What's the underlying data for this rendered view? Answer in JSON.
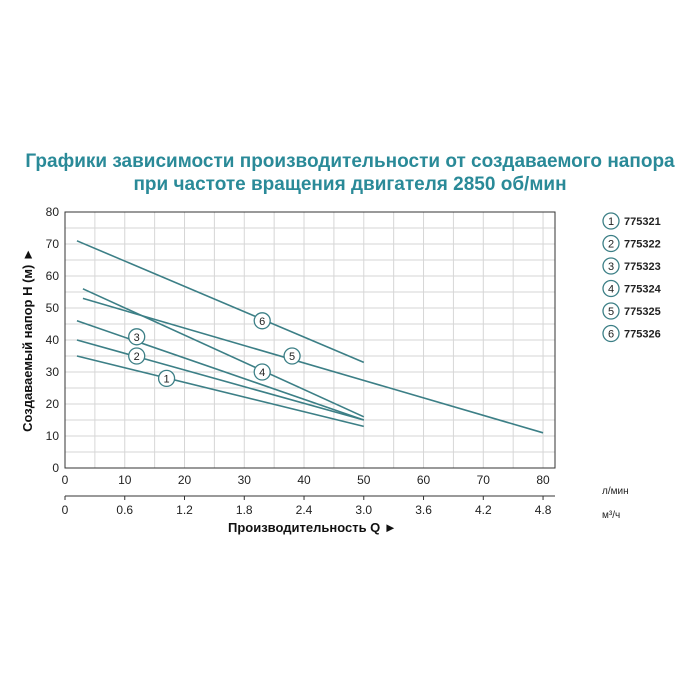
{
  "title": {
    "line1": "Графики зависимости производительности от создаваемого напора",
    "line2": "при частоте вращения двигателя 2850 об/мин"
  },
  "colors": {
    "title": "#2a8a98",
    "series_line": "#3c7f86",
    "grid": "#d6d6d6",
    "axis": "#333333"
  },
  "chart_data": {
    "type": "line",
    "xlabel": "Производительность Q ►",
    "ylabel": "Создаваемый напор Н (м) ►",
    "x_unit_primary": "л/мин",
    "x_unit_secondary": "м³/ч",
    "xlim": [
      0,
      82
    ],
    "ylim": [
      0,
      80
    ],
    "x_ticks": [
      0,
      10,
      20,
      30,
      40,
      50,
      60,
      70,
      80
    ],
    "x_tick_labels": [
      "0",
      "10",
      "20",
      "30",
      "40",
      "50",
      "60",
      "70",
      "80"
    ],
    "x2_tick_labels": [
      "0",
      "0.6",
      "1.2",
      "1.8",
      "2.4",
      "3.0",
      "3.6",
      "4.2",
      "4.8"
    ],
    "y_ticks": [
      0,
      10,
      20,
      30,
      40,
      50,
      60,
      70,
      80
    ],
    "y_tick_labels": [
      "0",
      "10",
      "20",
      "30",
      "40",
      "50",
      "60",
      "70",
      "80"
    ],
    "grid": true,
    "legend_position": "right",
    "series": [
      {
        "name": "775321",
        "marker": "1",
        "x": [
          2,
          50
        ],
        "y": [
          35,
          13
        ],
        "marker_at": [
          17,
          28
        ]
      },
      {
        "name": "775322",
        "marker": "2",
        "x": [
          2,
          50
        ],
        "y": [
          40,
          15
        ],
        "marker_at": [
          12,
          35
        ]
      },
      {
        "name": "775323",
        "marker": "3",
        "x": [
          2,
          50
        ],
        "y": [
          46,
          15
        ],
        "marker_at": [
          12,
          41
        ]
      },
      {
        "name": "775324",
        "marker": "4",
        "x": [
          3,
          50
        ],
        "y": [
          56,
          16
        ],
        "marker_at": [
          33,
          30
        ]
      },
      {
        "name": "775325",
        "marker": "5",
        "x": [
          3,
          80
        ],
        "y": [
          53,
          11
        ],
        "marker_at": [
          38,
          35
        ]
      },
      {
        "name": "775326",
        "marker": "6",
        "x": [
          2,
          50
        ],
        "y": [
          71,
          33
        ],
        "marker_at": [
          33,
          46
        ]
      }
    ]
  },
  "legend": [
    {
      "num": "1",
      "code": "775321"
    },
    {
      "num": "2",
      "code": "775322"
    },
    {
      "num": "3",
      "code": "775323"
    },
    {
      "num": "4",
      "code": "775324"
    },
    {
      "num": "5",
      "code": "775325"
    },
    {
      "num": "6",
      "code": "775326"
    }
  ]
}
